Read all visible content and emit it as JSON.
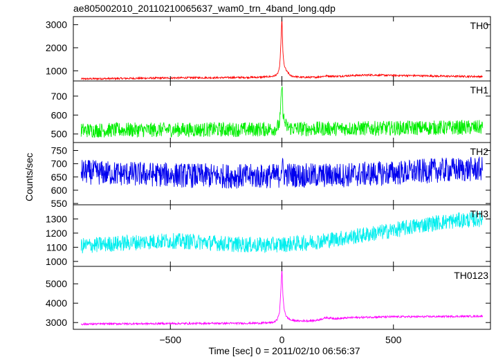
{
  "title": "ae805002010_20110210065637_wam0_trn_4band_long.qdp",
  "chart_data": {
    "type": "line",
    "title": "ae805002010_20110210065637_wam0_trn_4band_long.qdp",
    "xlabel": "Time [sec] 0 = 2011/02/10 06:56:37",
    "ylabel": "Counts/sec",
    "xlim": [
      -935,
      935
    ],
    "x_ticks": [
      -500,
      0,
      500
    ],
    "x_tick_labels": [
      "−500",
      "0",
      "500"
    ],
    "grid": false,
    "panels": [
      {
        "name": "TH0",
        "color": "#ff0000",
        "ylim": [
          560,
          3350
        ],
        "y_ticks": [
          1000,
          2000,
          3000
        ],
        "y_tick_labels": [
          "1000",
          "2000",
          "3000"
        ],
        "x": [
          -900,
          -800,
          -700,
          -600,
          -500,
          -400,
          -300,
          -200,
          -100,
          -40,
          -20,
          -10,
          -5,
          0,
          5,
          10,
          20,
          40,
          80,
          150,
          200,
          250,
          300,
          400,
          500,
          600,
          700,
          800,
          900
        ],
        "y": [
          650,
          660,
          670,
          680,
          690,
          700,
          700,
          710,
          720,
          760,
          850,
          1150,
          2100,
          3300,
          1700,
          1250,
          1000,
          780,
          720,
          720,
          780,
          760,
          790,
          820,
          800,
          790,
          770,
          760,
          750
        ]
      },
      {
        "name": "TH1",
        "color": "#00ee00",
        "ylim": [
          455,
          780
        ],
        "y_ticks": [
          500,
          600,
          700
        ],
        "y_tick_labels": [
          "500",
          "600",
          "700"
        ],
        "x": [
          -900,
          -800,
          -700,
          -600,
          -500,
          -400,
          -300,
          -200,
          -100,
          -40,
          -20,
          -10,
          -5,
          0,
          5,
          10,
          20,
          40,
          100,
          200,
          300,
          400,
          500,
          600,
          700,
          800,
          900
        ],
        "y": [
          520,
          520,
          522,
          521,
          523,
          522,
          524,
          523,
          525,
          526,
          535,
          560,
          640,
          760,
          620,
          570,
          540,
          530,
          527,
          528,
          529,
          530,
          531,
          532,
          533,
          534,
          535
        ]
      },
      {
        "name": "TH2",
        "color": "#0000ee",
        "ylim": [
          545,
          780
        ],
        "y_ticks": [
          550,
          600,
          650,
          700,
          750
        ],
        "y_tick_labels": [
          "550",
          "600",
          "650",
          "700",
          "750"
        ],
        "x": [
          -900,
          -800,
          -700,
          -600,
          -500,
          -400,
          -300,
          -200,
          -100,
          -10,
          0,
          10,
          100,
          200,
          300,
          400,
          500,
          600,
          700,
          800,
          900
        ],
        "y": [
          670,
          665,
          662,
          660,
          658,
          655,
          654,
          653,
          652,
          655,
          690,
          660,
          655,
          656,
          658,
          662,
          665,
          670,
          675,
          678,
          680
        ]
      },
      {
        "name": "TH3",
        "color": "#00eeee",
        "ylim": [
          965,
          1400
        ],
        "y_ticks": [
          1000,
          1100,
          1200,
          1300
        ],
        "y_tick_labels": [
          "1000",
          "1100",
          "1200",
          "1300"
        ],
        "x": [
          -900,
          -800,
          -700,
          -600,
          -500,
          -400,
          -300,
          -200,
          -100,
          0,
          100,
          200,
          300,
          400,
          500,
          600,
          700,
          800,
          900
        ],
        "y": [
          1110,
          1120,
          1130,
          1140,
          1145,
          1140,
          1130,
          1120,
          1115,
          1120,
          1130,
          1150,
          1170,
          1195,
          1220,
          1250,
          1275,
          1290,
          1300
        ]
      },
      {
        "name": "TH0123",
        "color": "#ff00ff",
        "ylim": [
          2650,
          5900
        ],
        "y_ticks": [
          3000,
          4000,
          5000
        ],
        "y_tick_labels": [
          "3000",
          "4000",
          "5000"
        ],
        "x": [
          -900,
          -800,
          -700,
          -600,
          -500,
          -400,
          -300,
          -200,
          -100,
          -40,
          -20,
          -10,
          -5,
          0,
          5,
          10,
          20,
          40,
          80,
          150,
          200,
          250,
          300,
          400,
          500,
          600,
          700,
          800,
          900
        ],
        "y": [
          2920,
          2930,
          2940,
          2940,
          2950,
          2950,
          2960,
          2960,
          2970,
          3000,
          3150,
          3600,
          4600,
          5800,
          4300,
          3700,
          3300,
          3120,
          3080,
          3100,
          3250,
          3200,
          3250,
          3280,
          3300,
          3300,
          3310,
          3320,
          3330
        ]
      }
    ]
  }
}
